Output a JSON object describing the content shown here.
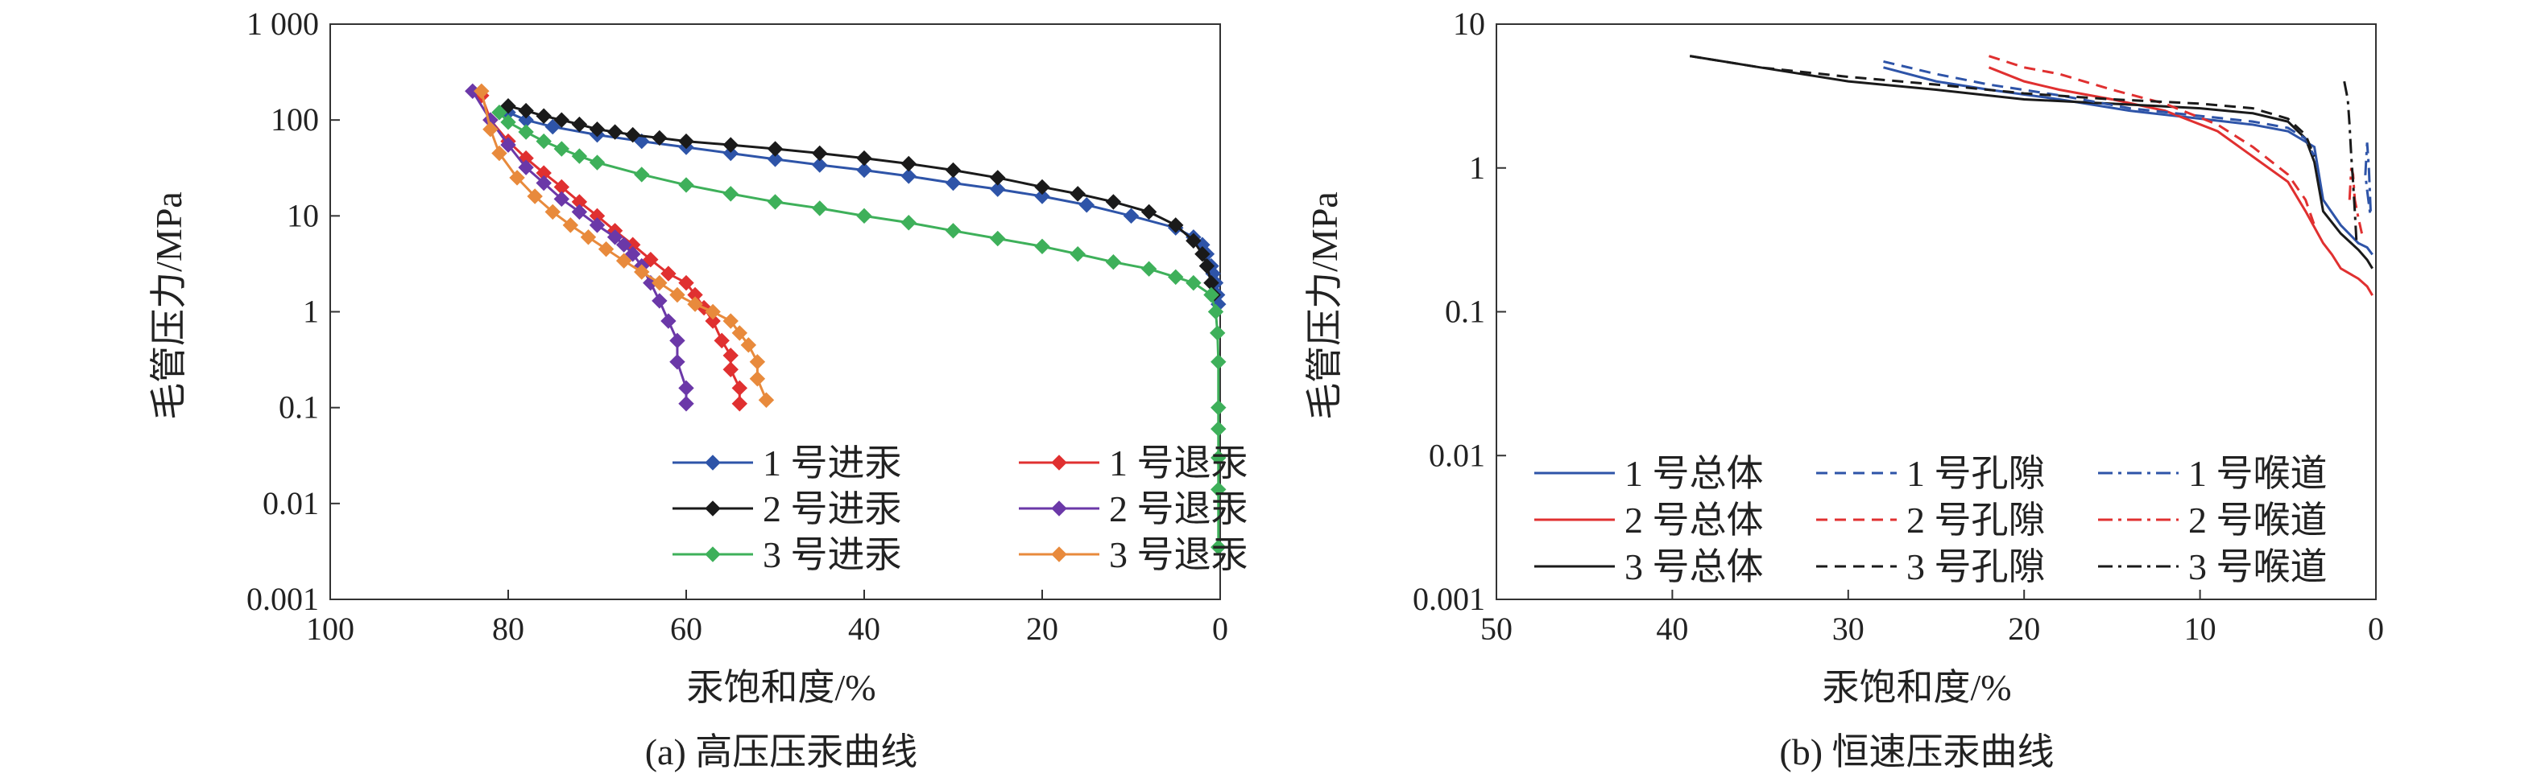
{
  "chart_data": [
    {
      "type": "line",
      "caption": "(a) 高压压汞曲线",
      "xlabel": "汞饱和度/%",
      "ylabel": "毛管压力/MPa",
      "x_reversed": true,
      "xlim": [
        100,
        0
      ],
      "ylim": [
        0.001,
        1000
      ],
      "y_scale": "log",
      "xticks": [
        "100",
        "80",
        "60",
        "40",
        "20",
        "0"
      ],
      "yticks": [
        "0.001",
        "0.01",
        "0.1",
        "1",
        "10",
        "100",
        "1 000"
      ],
      "grid": false,
      "legend_position": "bottom-right",
      "series": [
        {
          "name": "1 号进汞",
          "color": "#2e54a8",
          "marker": "diamond",
          "x": [
            0.2,
            0.3,
            0.5,
            0.8,
            1,
            1.5,
            2,
            3,
            5,
            10,
            15,
            20,
            25,
            30,
            35,
            40,
            45,
            50,
            55,
            60,
            65,
            70,
            75,
            78,
            80
          ],
          "y": [
            1.2,
            1.5,
            2,
            2.5,
            3,
            4,
            5,
            6,
            7.5,
            10,
            13,
            16,
            19,
            22,
            26,
            30,
            34,
            39,
            45,
            52,
            60,
            70,
            85,
            100,
            120
          ]
        },
        {
          "name": "2 号进汞",
          "color": "#1a1a1a",
          "marker": "diamond",
          "x": [
            0.8,
            1,
            1.5,
            2,
            3,
            5,
            8,
            12,
            16,
            20,
            25,
            30,
            35,
            40,
            45,
            50,
            55,
            60,
            63,
            66,
            68,
            70,
            72,
            74,
            76,
            78,
            80
          ],
          "y": [
            1.5,
            2,
            3,
            4,
            5.5,
            8,
            11,
            14,
            17,
            20,
            25,
            30,
            35,
            40,
            45,
            50,
            55,
            60,
            65,
            70,
            75,
            80,
            90,
            100,
            110,
            125,
            140
          ]
        },
        {
          "name": "3 号进汞",
          "color": "#3eb05a",
          "marker": "diamond",
          "x": [
            0.2,
            0.2,
            0.2,
            0.2,
            0.2,
            0.2,
            0.3,
            0.5,
            1,
            3,
            5,
            8,
            12,
            16,
            20,
            25,
            30,
            35,
            40,
            45,
            50,
            55,
            60,
            65,
            70,
            72,
            74,
            76,
            78,
            80,
            81
          ],
          "y": [
            0.0035,
            0.014,
            0.03,
            0.06,
            0.1,
            0.3,
            0.6,
            1,
            1.5,
            2,
            2.3,
            2.8,
            3.3,
            4,
            4.8,
            5.8,
            7,
            8.5,
            10,
            12,
            14,
            17,
            21,
            27,
            36,
            42,
            50,
            60,
            75,
            95,
            120
          ]
        },
        {
          "name": "1 号退汞",
          "color": "#e03030",
          "marker": "diamond",
          "x": [
            54,
            54,
            55,
            55,
            56,
            57,
            58,
            59,
            60,
            62,
            64,
            66,
            68,
            70,
            72,
            74,
            76,
            78,
            80,
            82,
            83
          ],
          "y": [
            0.11,
            0.16,
            0.25,
            0.35,
            0.5,
            0.8,
            1.1,
            1.5,
            2,
            2.5,
            3.5,
            5,
            7,
            10,
            14,
            20,
            28,
            40,
            60,
            100,
            180
          ]
        },
        {
          "name": "2 号退汞",
          "color": "#6b38a8",
          "marker": "diamond",
          "x": [
            60,
            60,
            61,
            61,
            62,
            63,
            64,
            65,
            66,
            67,
            68,
            70,
            72,
            74,
            76,
            78,
            80,
            82,
            84
          ],
          "y": [
            0.11,
            0.16,
            0.3,
            0.5,
            0.8,
            1.3,
            2,
            3,
            4,
            5,
            6,
            8,
            11,
            15,
            22,
            32,
            55,
            100,
            200
          ]
        },
        {
          "name": "3 号退汞",
          "color": "#e88a3c",
          "marker": "diamond",
          "x": [
            51,
            52,
            52,
            53,
            54,
            55,
            57,
            59,
            61,
            63,
            65,
            67,
            69,
            71,
            73,
            75,
            77,
            79,
            81,
            82,
            83
          ],
          "y": [
            0.12,
            0.2,
            0.3,
            0.45,
            0.6,
            0.8,
            1,
            1.2,
            1.5,
            2,
            2.6,
            3.4,
            4.5,
            6,
            8,
            11,
            16,
            25,
            45,
            80,
            200
          ]
        }
      ]
    },
    {
      "type": "line",
      "caption": "(b) 恒速压汞曲线",
      "xlabel": "汞饱和度/%",
      "ylabel": "毛管压力/MPa",
      "x_reversed": true,
      "xlim": [
        50,
        0
      ],
      "ylim": [
        0.001,
        10
      ],
      "y_scale": "log",
      "xticks": [
        "50",
        "40",
        "30",
        "20",
        "10",
        "0"
      ],
      "yticks": [
        "0.001",
        "0.01",
        "0.1",
        "1",
        "10"
      ],
      "grid": false,
      "legend_position": "bottom",
      "series": [
        {
          "name": "1 号总体",
          "color": "#2e54a8",
          "dash": "solid",
          "x": [
            28,
            25,
            22,
            18,
            14,
            10,
            7,
            5,
            3.5,
            3,
            2,
            1,
            0.5,
            0.2
          ],
          "y": [
            5,
            4,
            3.5,
            3,
            2.5,
            2.2,
            2,
            1.8,
            1.4,
            0.6,
            0.4,
            0.3,
            0.28,
            0.25
          ]
        },
        {
          "name": "2 号总体",
          "color": "#e03030",
          "dash": "solid",
          "x": [
            22,
            20,
            18,
            15,
            12,
            9,
            7,
            5,
            4,
            3,
            2.5,
            2,
            1,
            0.5,
            0.2
          ],
          "y": [
            5,
            4,
            3.5,
            3,
            2.5,
            1.8,
            1.2,
            0.8,
            0.5,
            0.3,
            0.25,
            0.2,
            0.17,
            0.15,
            0.13
          ]
        },
        {
          "name": "3 号总体",
          "color": "#1a1a1a",
          "dash": "solid",
          "x": [
            39,
            35,
            30,
            25,
            20,
            15,
            10,
            7,
            5,
            4,
            3.5,
            3,
            2,
            1,
            0.5,
            0.2
          ],
          "y": [
            6,
            5,
            4,
            3.5,
            3,
            2.8,
            2.6,
            2.4,
            2.1,
            1.6,
            1.1,
            0.5,
            0.35,
            0.27,
            0.23,
            0.2
          ]
        },
        {
          "name": "1 号孔隙",
          "color": "#2e54a8",
          "dash": "dash",
          "x": [
            28,
            25,
            22,
            18,
            14,
            10,
            7,
            5,
            4,
            3.5
          ],
          "y": [
            5.5,
            4.5,
            3.8,
            3.2,
            2.6,
            2.3,
            2.1,
            1.9,
            1.6,
            1.2
          ]
        },
        {
          "name": "2 号孔隙",
          "color": "#e03030",
          "dash": "dash",
          "x": [
            22,
            20,
            18,
            15,
            12,
            9,
            7,
            5,
            4,
            3.5
          ],
          "y": [
            6,
            5,
            4.5,
            3.5,
            2.8,
            2,
            1.4,
            0.9,
            0.6,
            0.4
          ]
        },
        {
          "name": "3 号孔隙",
          "color": "#1a1a1a",
          "dash": "dash",
          "x": [
            39,
            35,
            30,
            25,
            20,
            15,
            10,
            7,
            5,
            4,
            3.5
          ],
          "y": [
            6,
            5,
            4.3,
            3.8,
            3.3,
            3,
            2.8,
            2.6,
            2.2,
            1.7,
            1.2
          ]
        },
        {
          "name": "1 号喉道",
          "color": "#2e54a8",
          "dash": "dashdot",
          "x": [
            0.3,
            0.4,
            0.5,
            0.6,
            0.5,
            0.3
          ],
          "y": [
            0.5,
            1,
            1.5,
            0.9,
            0.7,
            0.45
          ]
        },
        {
          "name": "2 号喉道",
          "color": "#e03030",
          "dash": "dashdot",
          "x": [
            1.5,
            1.4,
            1.3,
            1.2,
            1.0,
            0.8
          ],
          "y": [
            0.6,
            1,
            0.9,
            0.6,
            0.45,
            0.35
          ]
        },
        {
          "name": "3 号喉道",
          "color": "#1a1a1a",
          "dash": "dashdot",
          "x": [
            1.8,
            1.6,
            1.5,
            1.4,
            1.3,
            1.2,
            1.1
          ],
          "y": [
            4,
            3,
            2,
            1.2,
            0.8,
            0.5,
            0.3
          ]
        }
      ]
    }
  ]
}
